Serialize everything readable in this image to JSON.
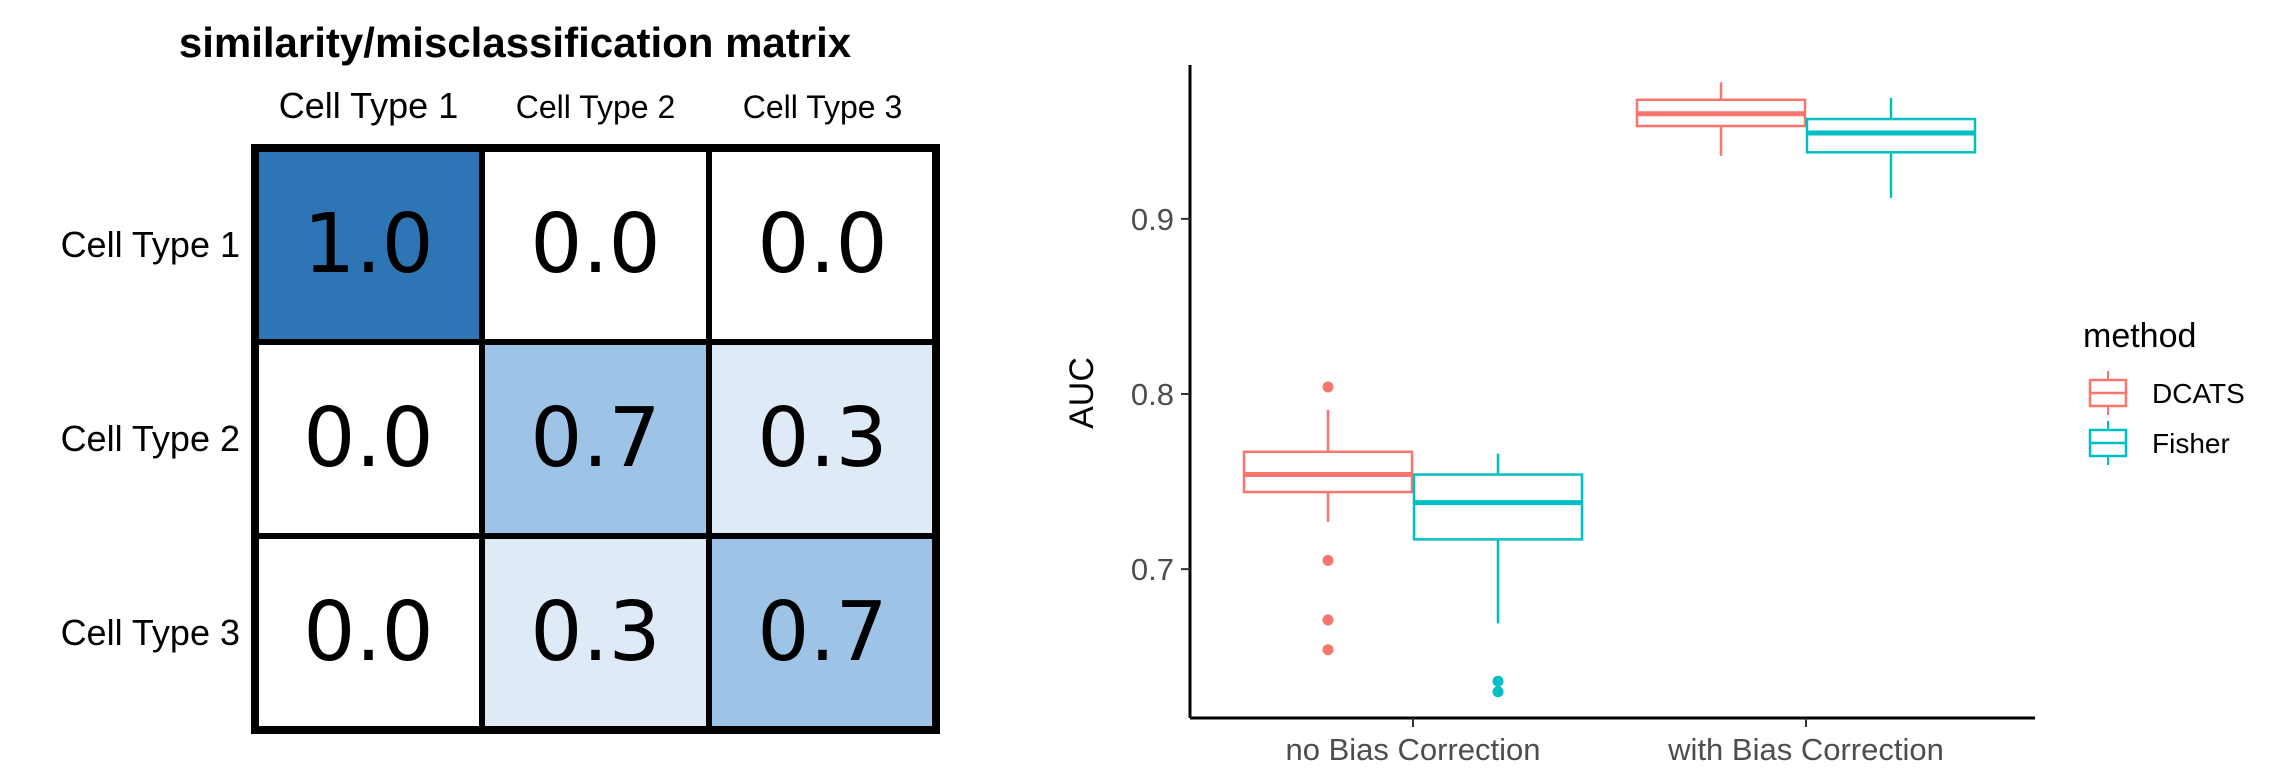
{
  "chart_data": [
    {
      "type": "heatmap",
      "title": "similarity/misclassification matrix",
      "columns": [
        "Cell Type 1",
        "Cell Type 2",
        "Cell Type 3"
      ],
      "rows": [
        "Cell Type 1",
        "Cell Type 2",
        "Cell Type 3"
      ],
      "values": [
        [
          1.0,
          0.0,
          0.0
        ],
        [
          0.0,
          0.7,
          0.3
        ],
        [
          0.0,
          0.3,
          0.7
        ]
      ],
      "value_labels": [
        [
          "1.0",
          "0.0",
          "0.0"
        ],
        [
          "0.0",
          "0.7",
          "0.3"
        ],
        [
          "0.0",
          "0.3",
          "0.7"
        ]
      ],
      "colors": {
        "high": "#2e75b6",
        "mid": "#9dc3e6",
        "low": "#deebf7",
        "zero": "#ffffff",
        "grid": "#000000"
      }
    },
    {
      "type": "box",
      "xlabel": "",
      "ylabel": "AUC",
      "categories": [
        "no Bias Correction",
        "with Bias Correction"
      ],
      "ylim": [
        0.615,
        0.985
      ],
      "yticks": [
        0.7,
        0.8,
        0.9
      ],
      "ytick_labels": [
        "0.7",
        "0.8",
        "0.9"
      ],
      "grid": false,
      "legend": {
        "title": "method",
        "position": "right"
      },
      "series": [
        {
          "name": "DCATS",
          "color": "#f8766d",
          "boxes": [
            {
              "category": "no Bias Correction",
              "lower_whisker": 0.727,
              "q1": 0.744,
              "median": 0.754,
              "q3": 0.767,
              "upper_whisker": 0.791,
              "outliers": [
                0.804,
                0.705,
                0.671,
                0.654
              ]
            },
            {
              "category": "with Bias Correction",
              "lower_whisker": 0.936,
              "q1": 0.953,
              "median": 0.96,
              "q3": 0.968,
              "upper_whisker": 0.978,
              "outliers": []
            }
          ]
        },
        {
          "name": "Fisher",
          "color": "#00bfc4",
          "boxes": [
            {
              "category": "no Bias Correction",
              "lower_whisker": 0.669,
              "q1": 0.717,
              "median": 0.738,
              "q3": 0.754,
              "upper_whisker": 0.766,
              "outliers": [
                0.636,
                0.63
              ]
            },
            {
              "category": "with Bias Correction",
              "lower_whisker": 0.912,
              "q1": 0.938,
              "median": 0.949,
              "q3": 0.957,
              "upper_whisker": 0.969,
              "outliers": []
            }
          ]
        }
      ]
    }
  ]
}
